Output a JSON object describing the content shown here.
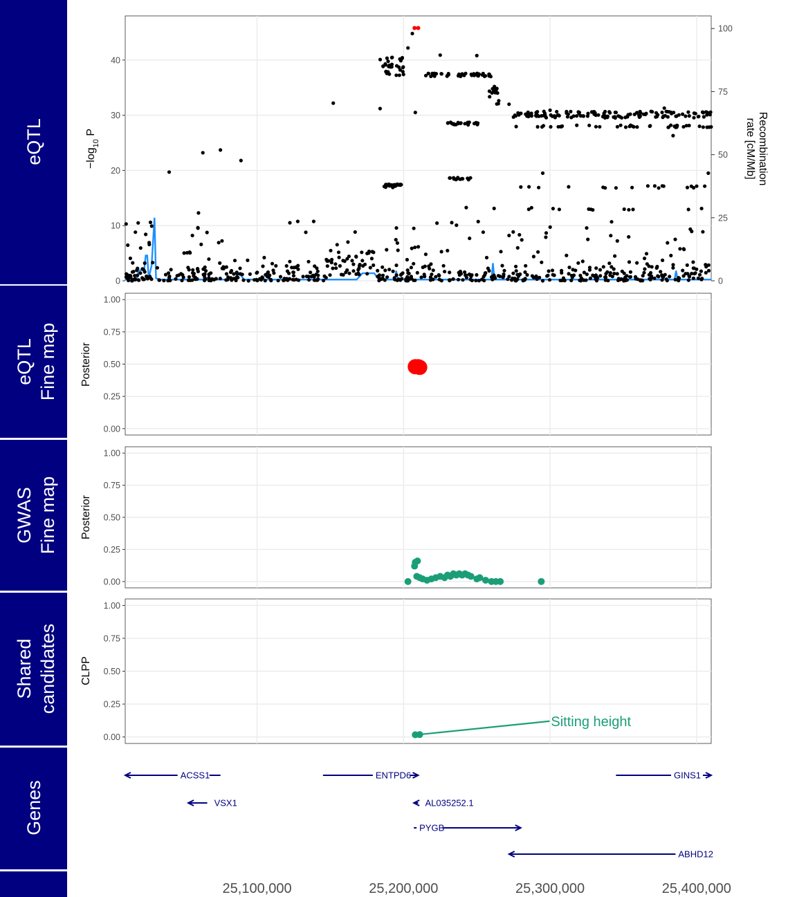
{
  "tracks": [
    {
      "lines": [
        "eQTL"
      ]
    },
    {
      "lines": [
        "eQTL",
        "Fine map"
      ]
    },
    {
      "lines": [
        "GWAS",
        "Fine map"
      ]
    },
    {
      "lines": [
        "Shared",
        "candidates"
      ]
    },
    {
      "lines": [
        "Genes"
      ]
    },
    {
      "lines": []
    }
  ],
  "colors": {
    "track_bg": "#000080",
    "grid": "#ebebeb",
    "point": "#000000",
    "lead": "#ff0000",
    "recomb_line": "#1e90ff",
    "gwas": "#1b9e77",
    "gene": "#000080"
  },
  "chart_data": [
    {
      "panel": "eqtl",
      "type": "scatter",
      "ylabel_main": "−log",
      "ylabel_sub": "10",
      "ylabel_tail": " P",
      "ylabel_right": [
        "Recombination",
        "rate [cM/Mb]"
      ],
      "xlim": [
        25010000,
        25410000
      ],
      "ylim": [
        0,
        48
      ],
      "yticks": [
        0,
        10,
        20,
        30,
        40
      ],
      "y2lim": [
        0,
        105
      ],
      "y2ticks": [
        0,
        25,
        50,
        75,
        100
      ],
      "lead_points": [
        {
          "x": 25207500,
          "y": 45.8
        },
        {
          "x": 25210000,
          "y": 45.8
        }
      ],
      "notable_points": [
        {
          "x": 25040000,
          "y": 19.7
        },
        {
          "x": 25060000,
          "y": 12.3
        },
        {
          "x": 25063000,
          "y": 23.2
        },
        {
          "x": 25075000,
          "y": 23.7
        },
        {
          "x": 25089000,
          "y": 21.8
        },
        {
          "x": 25152000,
          "y": 32.2
        },
        {
          "x": 25184000,
          "y": 31.2
        },
        {
          "x": 25186000,
          "y": 38.9
        },
        {
          "x": 25199000,
          "y": 40.3
        },
        {
          "x": 25203000,
          "y": 42.2
        },
        {
          "x": 25206000,
          "y": 44.8
        },
        {
          "x": 25208000,
          "y": 30.5
        },
        {
          "x": 25207000,
          "y": 9.5
        },
        {
          "x": 25225000,
          "y": 40.9
        },
        {
          "x": 25240000,
          "y": 37.5
        },
        {
          "x": 25250000,
          "y": 40.8
        },
        {
          "x": 25262000,
          "y": 35.2
        },
        {
          "x": 25272000,
          "y": 32.0
        },
        {
          "x": 25276000,
          "y": 30.0
        },
        {
          "x": 25295000,
          "y": 19.5
        },
        {
          "x": 25300000,
          "y": 30.9
        },
        {
          "x": 25320000,
          "y": 30.5
        },
        {
          "x": 25345000,
          "y": 30.5
        },
        {
          "x": 25378000,
          "y": 31.3
        },
        {
          "x": 25384000,
          "y": 26.3
        },
        {
          "x": 25405000,
          "y": 29.7
        },
        {
          "x": 25408000,
          "y": 19.5
        }
      ],
      "recombination": [
        {
          "x": 25010000,
          "y": 0.5
        },
        {
          "x": 25018000,
          "y": 0.8
        },
        {
          "x": 25019000,
          "y": 4
        },
        {
          "x": 25023000,
          "y": 4.5
        },
        {
          "x": 25024000,
          "y": 10
        },
        {
          "x": 25025000,
          "y": 10
        },
        {
          "x": 25026000,
          "y": 1
        },
        {
          "x": 25028000,
          "y": 6
        },
        {
          "x": 25030000,
          "y": 25
        },
        {
          "x": 25031000,
          "y": 1
        },
        {
          "x": 25034000,
          "y": 0.5
        },
        {
          "x": 25085000,
          "y": 0.5
        },
        {
          "x": 25088000,
          "y": 3
        },
        {
          "x": 25091000,
          "y": 0.5
        },
        {
          "x": 25168000,
          "y": 0.5
        },
        {
          "x": 25172000,
          "y": 3
        },
        {
          "x": 25180000,
          "y": 3
        },
        {
          "x": 25183000,
          "y": 0.5
        },
        {
          "x": 25194000,
          "y": 0.5
        },
        {
          "x": 25195000,
          "y": 4
        },
        {
          "x": 25196000,
          "y": 0.5
        },
        {
          "x": 25260000,
          "y": 0.5
        },
        {
          "x": 25261000,
          "y": 7
        },
        {
          "x": 25262000,
          "y": 0.5
        },
        {
          "x": 25385000,
          "y": 0.5
        },
        {
          "x": 25386000,
          "y": 4
        },
        {
          "x": 25387000,
          "y": 0.5
        },
        {
          "x": 25410000,
          "y": 0.5
        }
      ]
    },
    {
      "panel": "eqtl_finemap",
      "type": "scatter",
      "ylabel": "Posterior",
      "ylim": [
        0,
        1
      ],
      "yticks": [
        "0.00",
        "0.25",
        "0.50",
        "0.75",
        "1.00"
      ],
      "points": [
        {
          "x": 25208000,
          "y": 0.48
        },
        {
          "x": 25210000,
          "y": 0.48
        },
        {
          "x": 25211000,
          "y": 0.475
        }
      ]
    },
    {
      "panel": "gwas_finemap",
      "type": "scatter",
      "ylabel": "Posterior",
      "ylim": [
        0,
        1
      ],
      "yticks": [
        "0.00",
        "0.25",
        "0.50",
        "0.75",
        "1.00"
      ],
      "points": [
        {
          "x": 25203000,
          "y": 0.0
        },
        {
          "x": 25208000,
          "y": 0.15
        },
        {
          "x": 25209500,
          "y": 0.16
        },
        {
          "x": 25207500,
          "y": 0.12
        },
        {
          "x": 25209000,
          "y": 0.04
        },
        {
          "x": 25211000,
          "y": 0.03
        },
        {
          "x": 25213000,
          "y": 0.02
        },
        {
          "x": 25216000,
          "y": 0.01
        },
        {
          "x": 25219000,
          "y": 0.02
        },
        {
          "x": 25222000,
          "y": 0.03
        },
        {
          "x": 25225000,
          "y": 0.04
        },
        {
          "x": 25228000,
          "y": 0.03
        },
        {
          "x": 25230000,
          "y": 0.05
        },
        {
          "x": 25232000,
          "y": 0.04
        },
        {
          "x": 25234000,
          "y": 0.06
        },
        {
          "x": 25236000,
          "y": 0.05
        },
        {
          "x": 25238000,
          "y": 0.06
        },
        {
          "x": 25240000,
          "y": 0.05
        },
        {
          "x": 25242000,
          "y": 0.06
        },
        {
          "x": 25244000,
          "y": 0.05
        },
        {
          "x": 25246000,
          "y": 0.04
        },
        {
          "x": 25250000,
          "y": 0.02
        },
        {
          "x": 25252000,
          "y": 0.03
        },
        {
          "x": 25256000,
          "y": 0.01
        },
        {
          "x": 25260000,
          "y": 0.0
        },
        {
          "x": 25263000,
          "y": 0.0
        },
        {
          "x": 25266000,
          "y": 0.0
        },
        {
          "x": 25294000,
          "y": 0.0
        }
      ]
    },
    {
      "panel": "shared",
      "type": "scatter",
      "ylabel": "CLPP",
      "ylim": [
        0,
        1
      ],
      "yticks": [
        "0.00",
        "0.25",
        "0.50",
        "0.75",
        "1.00"
      ],
      "points": [
        {
          "x": 25208000,
          "y": 0.017
        },
        {
          "x": 25211000,
          "y": 0.018
        }
      ],
      "annotation": {
        "label": "Sitting height",
        "x_from": 25212000,
        "y_from": 0.02,
        "x_to": 25294000,
        "y_to": 0.12
      }
    },
    {
      "panel": "genes",
      "type": "gene_track",
      "genes": [
        {
          "name": "ACSS1",
          "start": 25010000,
          "end": 25075000,
          "strand": "-",
          "row": 0,
          "label_side": "right_inside"
        },
        {
          "name": "ENTPD6",
          "start": 25145000,
          "end": 25210000,
          "strand": "+",
          "row": 0,
          "label_side": "left_inside"
        },
        {
          "name": "GINS1",
          "start": 25345000,
          "end": 25410000,
          "strand": "+",
          "row": 0,
          "label_side": "left_inside"
        },
        {
          "name": "VSX1",
          "start": 25053000,
          "end": 25066000,
          "strand": "-",
          "row": 1,
          "label_side": "right"
        },
        {
          "name": "AL035252.1",
          "start": 25207000,
          "end": 25210000,
          "strand": "-",
          "row": 1,
          "label_side": "right"
        },
        {
          "name": "PYGB",
          "start": 25207000,
          "end": 25280000,
          "strand": "+",
          "row": 2,
          "label_side": "left_inside"
        },
        {
          "name": "ABHD12",
          "start": 25272000,
          "end": 25410000,
          "strand": "-",
          "row": 3,
          "label_side": "right_inside"
        }
      ]
    },
    {
      "panel": "x_axis",
      "type": "axis",
      "xticks": [
        {
          "value": 25100000,
          "label": "25,100,000"
        },
        {
          "value": 25200000,
          "label": "25,200,000"
        },
        {
          "value": 25300000,
          "label": "25,300,000"
        },
        {
          "value": 25400000,
          "label": "25,400,000"
        }
      ]
    }
  ]
}
